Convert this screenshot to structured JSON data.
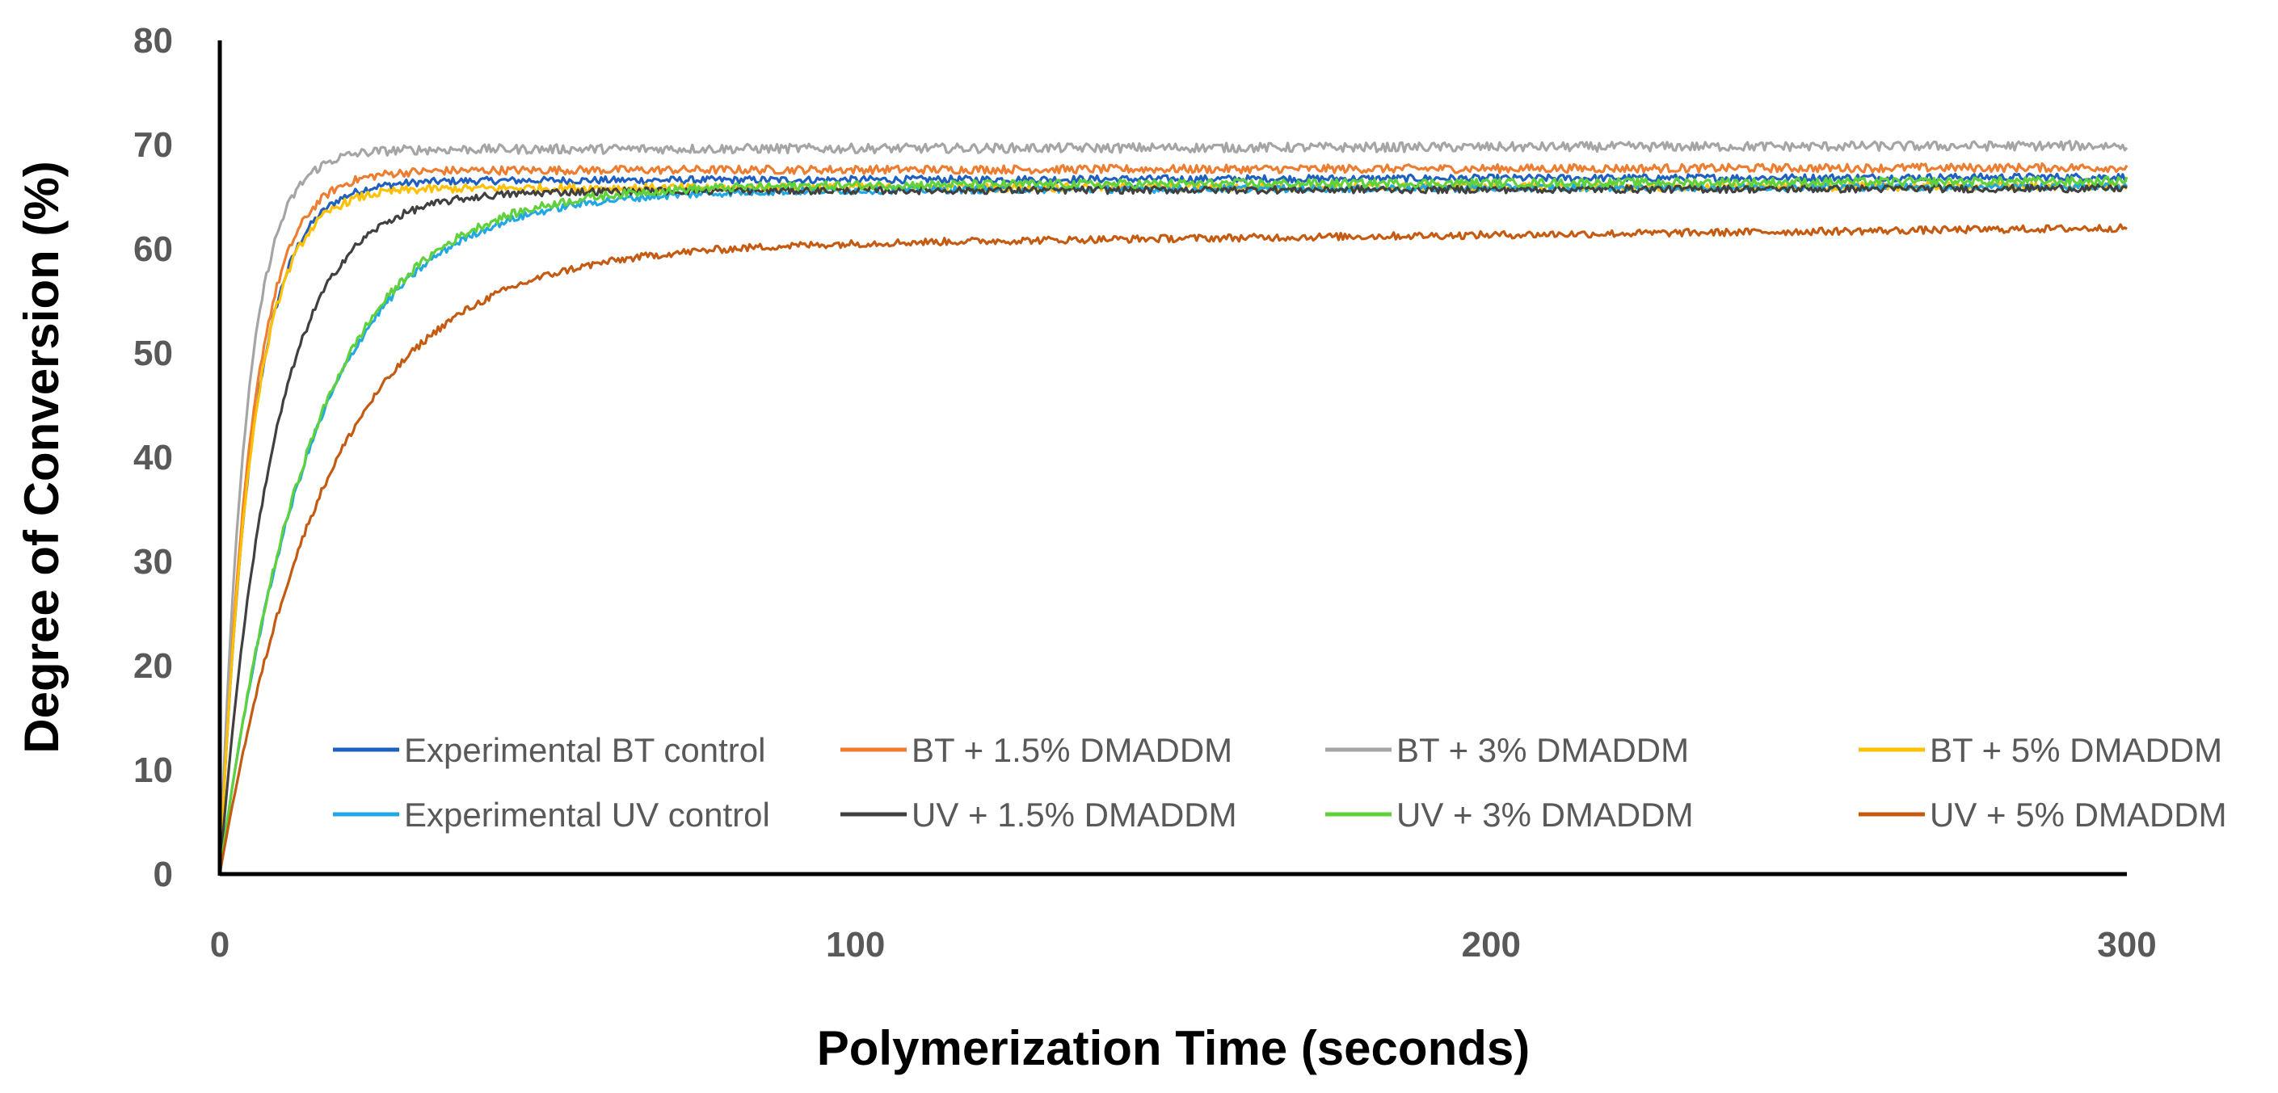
{
  "chart_data": {
    "type": "line",
    "title": "",
    "xlabel": "Polymerization Time (seconds)",
    "ylabel": "Degree of Conversion (%)",
    "xlim": [
      0,
      300
    ],
    "ylim": [
      0,
      80
    ],
    "xticks": [
      0,
      100,
      200,
      300
    ],
    "yticks": [
      0,
      10,
      20,
      30,
      40,
      50,
      60,
      70,
      80
    ],
    "grid": false,
    "legend_position": "bottom-inside",
    "series": [
      {
        "name": "Experimental BT control",
        "color": "#1F5FBF",
        "plateau": 66.5,
        "tau": 5.2,
        "drift": 0.4,
        "noise": 0.35,
        "x": [
          0,
          5,
          10,
          20,
          40,
          60,
          100,
          150,
          200,
          250,
          300
        ],
        "y": [
          0,
          40,
          56,
          62,
          65,
          66,
          66.3,
          66.5,
          66.6,
          66.8,
          67
        ]
      },
      {
        "name": "BT + 1.5% DMADDM",
        "color": "#ED7D31",
        "plateau": 67.5,
        "tau": 5.0,
        "drift": 0.3,
        "noise": 0.4,
        "x": [
          0,
          5,
          10,
          20,
          40,
          60,
          100,
          150,
          200,
          250,
          300
        ],
        "y": [
          0,
          41,
          57,
          63,
          66,
          66.8,
          67,
          67.3,
          67.5,
          67.8,
          68
        ]
      },
      {
        "name": "BT + 3% DMADDM",
        "color": "#A5A5A5",
        "plateau": 69.5,
        "tau": 4.2,
        "drift": 0.4,
        "noise": 0.45,
        "x": [
          0,
          5,
          10,
          20,
          40,
          60,
          100,
          150,
          200,
          250,
          300
        ],
        "y": [
          0,
          45,
          61,
          66,
          68,
          68.6,
          69,
          69.3,
          69.5,
          69.7,
          70
        ]
      },
      {
        "name": "BT + 5% DMADDM",
        "color": "#FFC000",
        "plateau": 65.8,
        "tau": 5.1,
        "drift": 0.2,
        "noise": 0.4,
        "x": [
          0,
          5,
          10,
          20,
          40,
          60,
          100,
          150,
          200,
          250,
          300
        ],
        "y": [
          0,
          40,
          56,
          62,
          64.5,
          65.2,
          65.5,
          65.8,
          66,
          66,
          66
        ]
      },
      {
        "name": "Experimental UV control",
        "color": "#21A7E3",
        "plateau": 65.5,
        "tau": 14.5,
        "drift": 0.5,
        "noise": 0.35,
        "x": [
          0,
          5,
          10,
          20,
          40,
          60,
          100,
          150,
          200,
          250,
          300
        ],
        "y": [
          0,
          18,
          32,
          49,
          60,
          63,
          64.5,
          65,
          65.5,
          66,
          66.5
        ]
      },
      {
        "name": "UV + 1.5% DMADDM",
        "color": "#404040",
        "plateau": 65.5,
        "tau": 8.5,
        "drift": 0.3,
        "noise": 0.35,
        "x": [
          0,
          5,
          10,
          20,
          40,
          60,
          100,
          150,
          200,
          250,
          300
        ],
        "y": [
          0,
          30,
          45,
          57,
          62,
          64,
          65,
          65.3,
          65.5,
          65.8,
          66
        ]
      },
      {
        "name": "UV + 3% DMADDM",
        "color": "#5FD13A",
        "plateau": 66.0,
        "tau": 14.5,
        "drift": 0.5,
        "noise": 0.4,
        "x": [
          0,
          5,
          10,
          20,
          40,
          60,
          100,
          150,
          200,
          250,
          300
        ],
        "y": [
          0,
          18,
          32,
          49,
          60,
          63,
          65,
          65.5,
          66,
          66.5,
          67
        ]
      },
      {
        "name": "UV + 5% DMADDM",
        "color": "#C55A11",
        "plateau": 60.0,
        "tau": 17.0,
        "drift": 2.0,
        "noise": 0.35,
        "x": [
          0,
          5,
          10,
          20,
          40,
          60,
          100,
          150,
          200,
          250,
          300
        ],
        "y": [
          0,
          15,
          28,
          44,
          54,
          57,
          59.5,
          60.5,
          61,
          61.5,
          62
        ]
      }
    ]
  }
}
